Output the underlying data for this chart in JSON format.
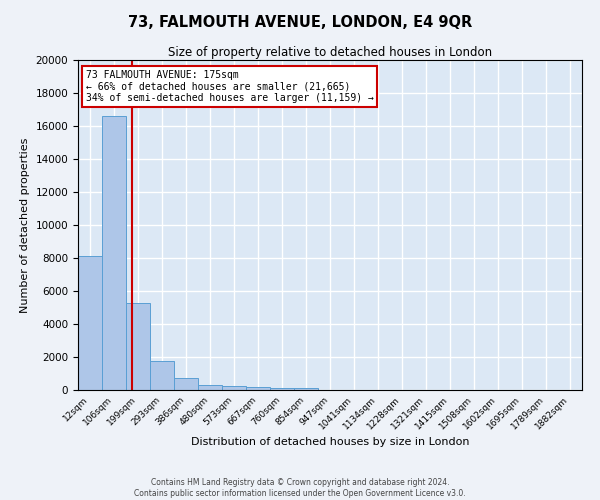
{
  "title": "73, FALMOUTH AVENUE, LONDON, E4 9QR",
  "subtitle": "Size of property relative to detached houses in London",
  "xlabel": "Distribution of detached houses by size in London",
  "ylabel": "Number of detached properties",
  "bar_color": "#aec6e8",
  "bar_edge_color": "#5a9fd4",
  "bg_color": "#dce8f5",
  "grid_color": "#ffffff",
  "fig_bg_color": "#eef2f8",
  "categories": [
    "12sqm",
    "106sqm",
    "199sqm",
    "293sqm",
    "386sqm",
    "480sqm",
    "573sqm",
    "667sqm",
    "760sqm",
    "854sqm",
    "947sqm",
    "1041sqm",
    "1134sqm",
    "1228sqm",
    "1321sqm",
    "1415sqm",
    "1508sqm",
    "1602sqm",
    "1695sqm",
    "1789sqm",
    "1882sqm"
  ],
  "values": [
    8100,
    16600,
    5300,
    1750,
    700,
    320,
    220,
    180,
    100,
    100,
    0,
    0,
    0,
    0,
    0,
    0,
    0,
    0,
    0,
    0,
    0
  ],
  "ylim": [
    0,
    20000
  ],
  "yticks": [
    0,
    2000,
    4000,
    6000,
    8000,
    10000,
    12000,
    14000,
    16000,
    18000,
    20000
  ],
  "property_label": "73 FALMOUTH AVENUE: 175sqm",
  "annotation_line1": "← 66% of detached houses are smaller (21,665)",
  "annotation_line2": "34% of semi-detached houses are larger (11,159) →",
  "vline_color": "#cc0000",
  "annotation_box_edge_color": "#cc0000",
  "vline_position": 1.742,
  "footer_line1": "Contains HM Land Registry data © Crown copyright and database right 2024.",
  "footer_line2": "Contains public sector information licensed under the Open Government Licence v3.0."
}
